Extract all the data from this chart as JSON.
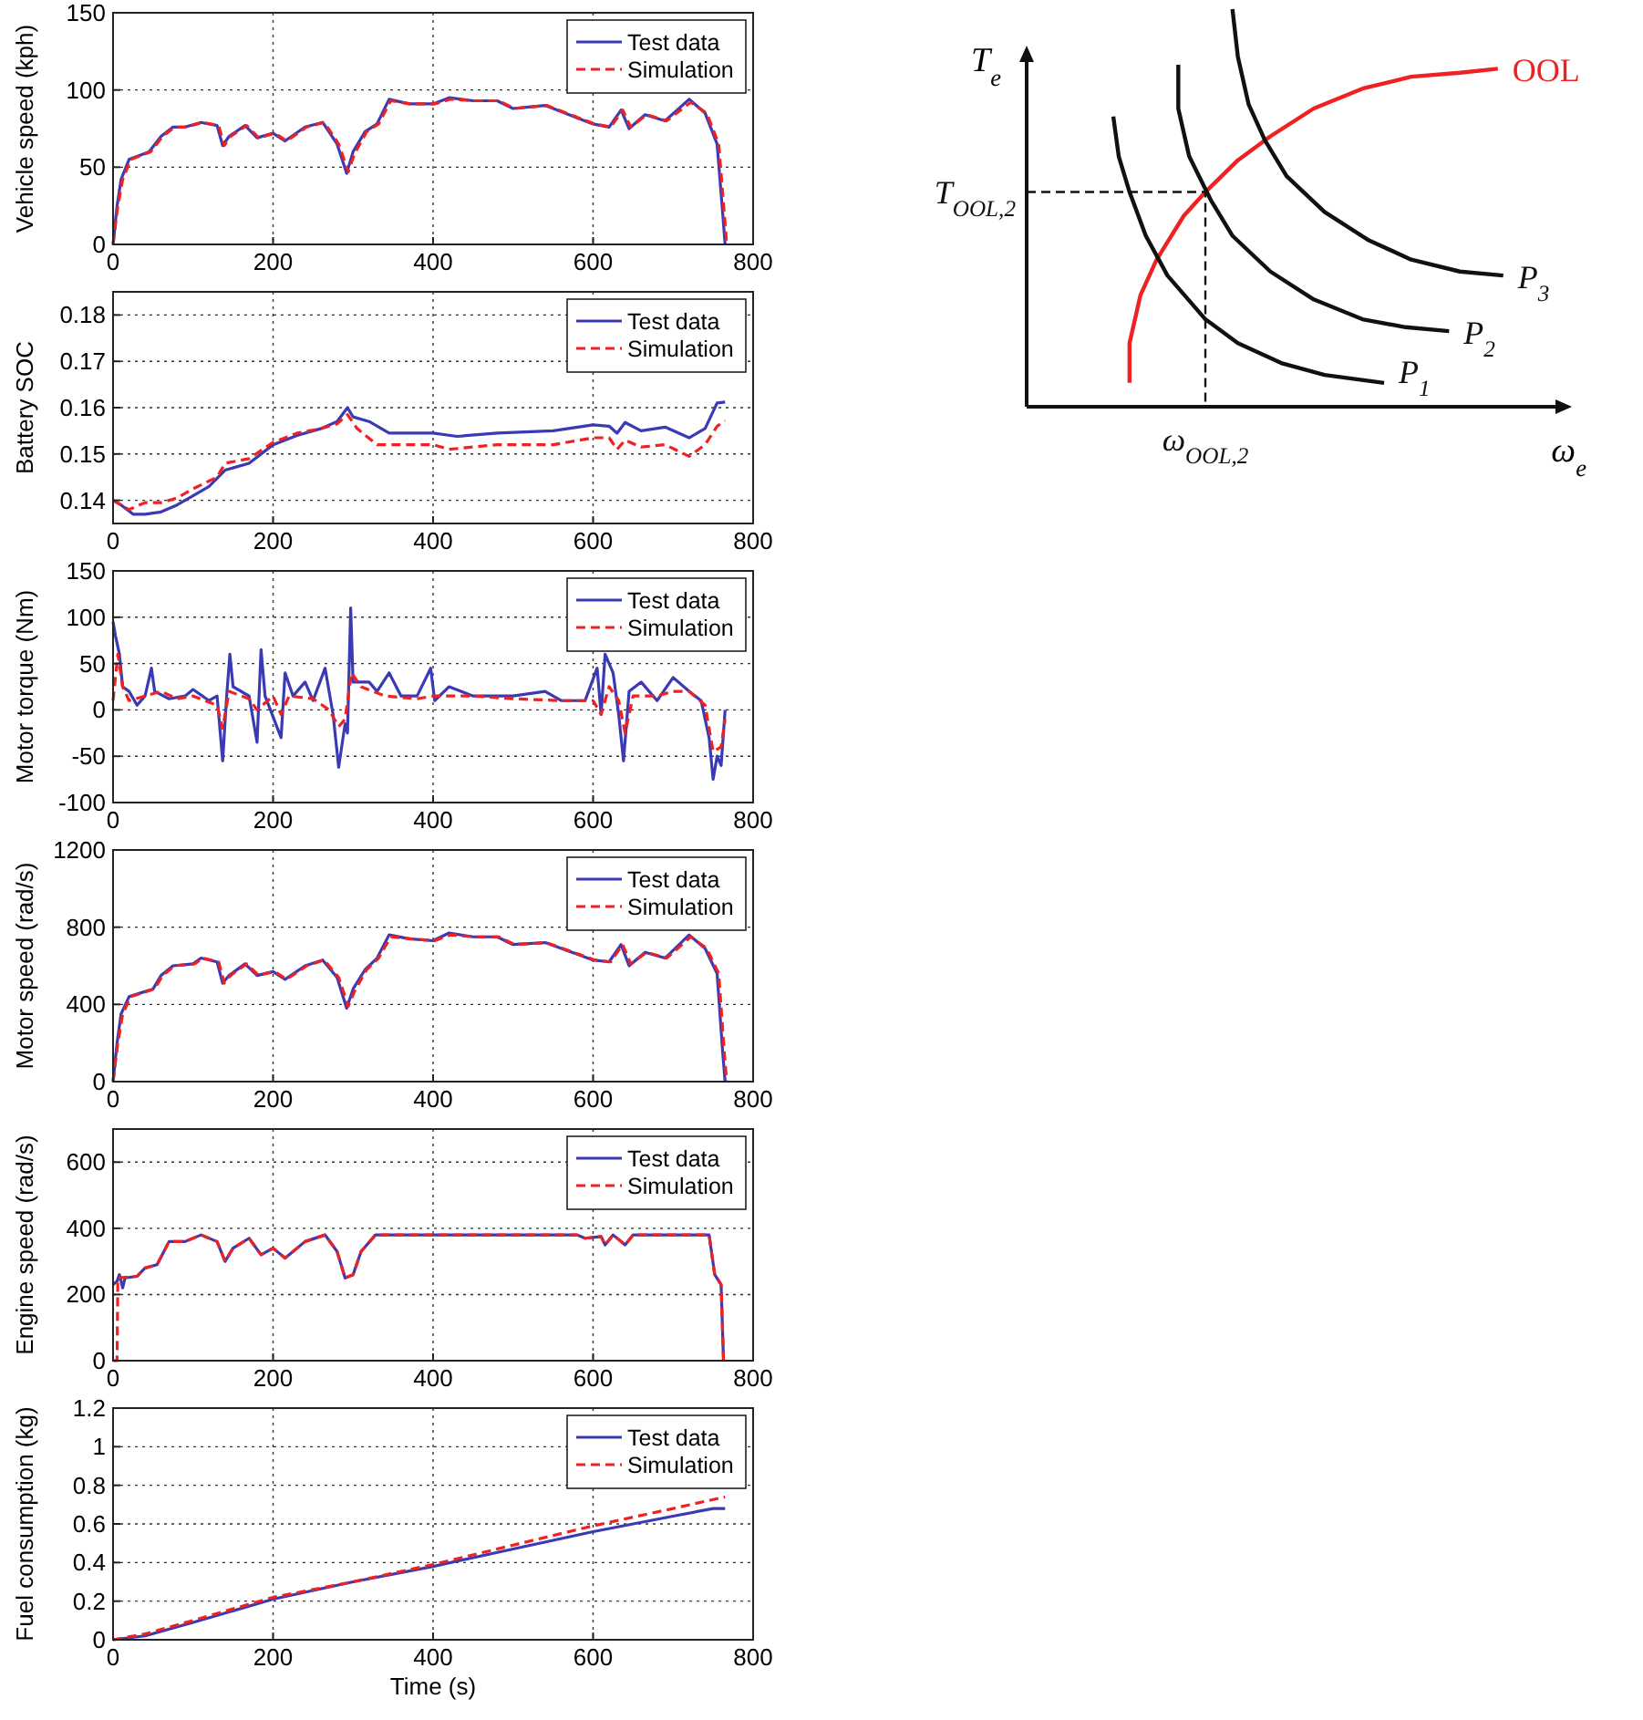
{
  "chart_data": [
    {
      "type": "line",
      "ylabel": "Vehicle speed (kph)",
      "xlim": [
        0,
        800
      ],
      "xticks": [
        0,
        200,
        400,
        600,
        800
      ],
      "ylim": [
        0,
        150
      ],
      "yticks": [
        0,
        50,
        100,
        150
      ],
      "grid": true,
      "legend": "top right",
      "series": [
        {
          "name": "Test data",
          "color": "#3a3ab4",
          "line_style": "solid",
          "x": [
            0,
            5,
            10,
            20,
            30,
            45,
            60,
            75,
            90,
            110,
            130,
            137,
            145,
            165,
            180,
            200,
            215,
            240,
            262,
            280,
            292,
            300,
            315,
            330,
            345,
            370,
            400,
            420,
            450,
            480,
            500,
            540,
            580,
            600,
            620,
            635,
            645,
            665,
            690,
            720,
            740,
            755,
            762,
            765
          ],
          "values": [
            0,
            25,
            42,
            55,
            57,
            60,
            70,
            76,
            76,
            79,
            77,
            64,
            70,
            77,
            69,
            72,
            67,
            76,
            79,
            65,
            46,
            60,
            73,
            78,
            94,
            91,
            91,
            95,
            93,
            93,
            88,
            90,
            82,
            78,
            76,
            87,
            75,
            84,
            80,
            94,
            85,
            65,
            20,
            0
          ]
        },
        {
          "name": "Simulation",
          "color": "#ee2222",
          "line_style": "dashed",
          "x": [
            0,
            6,
            12,
            22,
            32,
            47,
            62,
            77,
            92,
            112,
            132,
            139,
            147,
            167,
            182,
            202,
            217,
            242,
            264,
            282,
            294,
            302,
            317,
            332,
            347,
            372,
            402,
            422,
            452,
            482,
            502,
            542,
            582,
            602,
            622,
            637,
            647,
            667,
            692,
            722,
            742,
            757,
            764,
            767
          ],
          "values": [
            0,
            25,
            42,
            55,
            57,
            60,
            70,
            76,
            76,
            79,
            77,
            64,
            70,
            77,
            69,
            72,
            67,
            76,
            79,
            65,
            47,
            59,
            73,
            78,
            93,
            91,
            91,
            94,
            93,
            93,
            88,
            90,
            82,
            78,
            76,
            87,
            76,
            84,
            80,
            92,
            85,
            65,
            20,
            0
          ]
        }
      ]
    },
    {
      "type": "line",
      "ylabel": "Battery SOC",
      "xlim": [
        0,
        800
      ],
      "xticks": [
        0,
        200,
        400,
        600,
        800
      ],
      "ylim": [
        0.135,
        0.185
      ],
      "yticks": [
        0.14,
        0.15,
        0.16,
        0.17,
        0.18
      ],
      "grid": true,
      "legend": "top right",
      "series": [
        {
          "name": "Test data",
          "color": "#3a3ab4",
          "line_style": "solid",
          "x": [
            0,
            10,
            25,
            40,
            60,
            80,
            100,
            120,
            140,
            170,
            200,
            230,
            260,
            280,
            293,
            300,
            320,
            345,
            400,
            430,
            480,
            550,
            600,
            620,
            630,
            640,
            660,
            690,
            720,
            740,
            755,
            765
          ],
          "values": [
            0.14,
            0.139,
            0.137,
            0.137,
            0.1375,
            0.139,
            0.141,
            0.143,
            0.1465,
            0.148,
            0.152,
            0.154,
            0.1555,
            0.157,
            0.16,
            0.158,
            0.157,
            0.1545,
            0.1545,
            0.1538,
            0.1545,
            0.155,
            0.1563,
            0.156,
            0.1545,
            0.1568,
            0.155,
            0.1558,
            0.1535,
            0.1555,
            0.161,
            0.1612
          ]
        },
        {
          "name": "Simulation",
          "color": "#ee2222",
          "line_style": "dashed",
          "x": [
            0,
            20,
            40,
            60,
            80,
            100,
            130,
            140,
            170,
            200,
            230,
            260,
            280,
            293,
            305,
            330,
            400,
            420,
            480,
            550,
            600,
            620,
            630,
            640,
            660,
            690,
            720,
            740,
            755,
            765
          ],
          "values": [
            0.14,
            0.138,
            0.1395,
            0.1395,
            0.1405,
            0.1425,
            0.145,
            0.148,
            0.149,
            0.1525,
            0.1545,
            0.1555,
            0.1565,
            0.1585,
            0.1555,
            0.152,
            0.152,
            0.151,
            0.152,
            0.152,
            0.1535,
            0.1535,
            0.151,
            0.153,
            0.1515,
            0.152,
            0.1495,
            0.152,
            0.156,
            0.1572
          ]
        }
      ]
    },
    {
      "type": "line",
      "ylabel": "Motor torque (Nm)",
      "xlim": [
        0,
        800
      ],
      "xticks": [
        0,
        200,
        400,
        600,
        800
      ],
      "ylim": [
        -100,
        150
      ],
      "yticks": [
        -100,
        -50,
        0,
        50,
        100,
        150
      ],
      "grid": true,
      "legend": "top right",
      "series": [
        {
          "name": "Test data",
          "color": "#3a3ab4",
          "line_style": "solid",
          "x": [
            0,
            3,
            8,
            12,
            20,
            30,
            40,
            48,
            52,
            70,
            90,
            100,
            120,
            130,
            137,
            142,
            146,
            150,
            170,
            180,
            185,
            190,
            210,
            215,
            225,
            240,
            250,
            265,
            275,
            282,
            290,
            293,
            297,
            300,
            320,
            330,
            345,
            360,
            380,
            397,
            402,
            420,
            450,
            500,
            540,
            560,
            590,
            605,
            610,
            615,
            625,
            632,
            638,
            645,
            660,
            680,
            700,
            720,
            735,
            745,
            750,
            755,
            760,
            765
          ],
          "values": [
            95,
            80,
            60,
            25,
            20,
            5,
            15,
            45,
            20,
            12,
            15,
            22,
            10,
            15,
            -55,
            15,
            60,
            25,
            15,
            -35,
            65,
            15,
            -30,
            40,
            15,
            30,
            10,
            45,
            -5,
            -62,
            -15,
            -25,
            110,
            30,
            30,
            20,
            40,
            15,
            15,
            45,
            10,
            25,
            15,
            15,
            20,
            10,
            10,
            45,
            -5,
            60,
            40,
            -5,
            -55,
            20,
            30,
            10,
            35,
            20,
            10,
            -30,
            -75,
            -50,
            -60,
            0
          ]
        },
        {
          "name": "Simulation",
          "color": "#ee2222",
          "line_style": "dashed",
          "x": [
            0,
            6,
            12,
            20,
            40,
            60,
            80,
            100,
            130,
            137,
            145,
            170,
            180,
            200,
            210,
            220,
            250,
            270,
            282,
            290,
            298,
            310,
            340,
            380,
            400,
            450,
            500,
            560,
            600,
            610,
            620,
            632,
            640,
            650,
            680,
            700,
            720,
            740,
            750,
            760,
            765
          ],
          "values": [
            10,
            60,
            25,
            10,
            15,
            20,
            12,
            15,
            5,
            -20,
            20,
            12,
            0,
            15,
            -5,
            15,
            12,
            0,
            -18,
            -10,
            40,
            25,
            15,
            12,
            15,
            15,
            12,
            10,
            10,
            -5,
            25,
            10,
            -25,
            15,
            15,
            20,
            20,
            5,
            -45,
            -40,
            -10
          ]
        }
      ]
    },
    {
      "type": "line",
      "ylabel": "Motor speed (rad/s)",
      "xlim": [
        0,
        800
      ],
      "xticks": [
        0,
        200,
        400,
        600,
        800
      ],
      "ylim": [
        0,
        1200
      ],
      "yticks": [
        0,
        400,
        800,
        1200
      ],
      "grid": true,
      "legend": "top right",
      "series": [
        {
          "name": "Test data",
          "color": "#3a3ab4",
          "line_style": "solid",
          "x": [
            0,
            5,
            10,
            20,
            35,
            50,
            60,
            75,
            100,
            110,
            130,
            137,
            145,
            165,
            180,
            200,
            215,
            240,
            262,
            280,
            292,
            300,
            315,
            330,
            345,
            370,
            400,
            420,
            450,
            480,
            500,
            540,
            580,
            600,
            620,
            635,
            645,
            665,
            690,
            720,
            740,
            755,
            762,
            765
          ],
          "values": [
            0,
            200,
            350,
            440,
            460,
            480,
            550,
            600,
            610,
            640,
            620,
            510,
            550,
            610,
            550,
            570,
            530,
            600,
            630,
            540,
            380,
            480,
            580,
            640,
            760,
            740,
            730,
            770,
            750,
            750,
            710,
            720,
            660,
            630,
            620,
            710,
            600,
            670,
            640,
            760,
            690,
            560,
            150,
            0
          ]
        },
        {
          "name": "Simulation",
          "color": "#ee2222",
          "line_style": "dashed",
          "x": [
            0,
            6,
            12,
            22,
            37,
            52,
            62,
            77,
            102,
            112,
            132,
            139,
            147,
            167,
            182,
            202,
            217,
            242,
            264,
            282,
            294,
            302,
            317,
            332,
            347,
            372,
            402,
            422,
            452,
            482,
            502,
            542,
            582,
            602,
            622,
            637,
            647,
            667,
            692,
            722,
            742,
            757,
            764,
            767
          ],
          "values": [
            0,
            200,
            350,
            440,
            460,
            480,
            550,
            600,
            610,
            640,
            620,
            510,
            550,
            610,
            550,
            570,
            530,
            600,
            630,
            540,
            390,
            470,
            580,
            640,
            750,
            740,
            730,
            760,
            750,
            750,
            710,
            720,
            660,
            630,
            620,
            710,
            610,
            670,
            640,
            750,
            690,
            560,
            150,
            0
          ]
        }
      ]
    },
    {
      "type": "line",
      "ylabel": "Engine speed (rad/s)",
      "xlim": [
        0,
        800
      ],
      "xticks": [
        0,
        200,
        400,
        600,
        800
      ],
      "ylim": [
        0,
        700
      ],
      "yticks": [
        0,
        200,
        400,
        600
      ],
      "grid": true,
      "legend": "top right",
      "series": [
        {
          "name": "Test data",
          "color": "#3a3ab4",
          "line_style": "solid",
          "x": [
            0,
            5,
            8,
            12,
            15,
            30,
            40,
            55,
            70,
            90,
            110,
            130,
            140,
            150,
            170,
            185,
            200,
            215,
            240,
            265,
            280,
            290,
            300,
            310,
            328,
            400,
            500,
            580,
            590,
            610,
            615,
            625,
            640,
            650,
            700,
            745,
            752,
            760,
            763
          ],
          "values": [
            230,
            240,
            260,
            220,
            250,
            255,
            280,
            290,
            360,
            360,
            380,
            360,
            300,
            340,
            370,
            320,
            340,
            310,
            360,
            380,
            330,
            250,
            260,
            330,
            380,
            380,
            380,
            380,
            370,
            375,
            350,
            380,
            350,
            380,
            380,
            380,
            260,
            230,
            0
          ]
        },
        {
          "name": "Simulation",
          "color": "#ee2222",
          "line_style": "dashed",
          "x": [
            0,
            5,
            6,
            30,
            40,
            55,
            70,
            90,
            110,
            130,
            140,
            150,
            170,
            185,
            200,
            215,
            240,
            265,
            280,
            290,
            300,
            310,
            328,
            400,
            500,
            580,
            590,
            610,
            615,
            625,
            640,
            650,
            700,
            745,
            752,
            760,
            763
          ],
          "values": [
            0,
            0,
            250,
            255,
            280,
            290,
            360,
            360,
            380,
            360,
            300,
            340,
            370,
            320,
            340,
            310,
            360,
            380,
            330,
            250,
            260,
            330,
            380,
            380,
            380,
            380,
            370,
            375,
            350,
            380,
            350,
            380,
            380,
            380,
            260,
            230,
            0
          ]
        }
      ]
    },
    {
      "type": "line",
      "xlabel": "Time (s)",
      "ylabel": "Fuel consumption (kg)",
      "xlim": [
        0,
        800
      ],
      "xticks": [
        0,
        200,
        400,
        600,
        800
      ],
      "ylim": [
        0,
        1.2
      ],
      "yticks": [
        0,
        0.2,
        0.4,
        0.6,
        0.8,
        1,
        1.2
      ],
      "grid": true,
      "legend": "top right",
      "series": [
        {
          "name": "Test data",
          "color": "#3a3ab4",
          "line_style": "solid",
          "x": [
            0,
            40,
            100,
            200,
            300,
            400,
            500,
            600,
            700,
            750,
            765
          ],
          "values": [
            0,
            0.02,
            0.09,
            0.21,
            0.3,
            0.38,
            0.47,
            0.56,
            0.64,
            0.68,
            0.68
          ]
        },
        {
          "name": "Simulation",
          "color": "#ee2222",
          "line_style": "dashed",
          "x": [
            0,
            40,
            100,
            200,
            300,
            400,
            500,
            600,
            700,
            765
          ],
          "values": [
            0,
            0.03,
            0.1,
            0.22,
            0.3,
            0.39,
            0.49,
            0.59,
            0.68,
            0.74
          ]
        }
      ]
    },
    {
      "type": "other",
      "xlabel": "ω$_{e}$",
      "ylabel": "T$_{e}$",
      "annotations": [
        "OOL",
        "P$_{1}$",
        "P$_{2}$",
        "P$_{3}$",
        "T$_{OOL,2}$",
        "ω$_{OOL,2}$"
      ]
    }
  ]
}
